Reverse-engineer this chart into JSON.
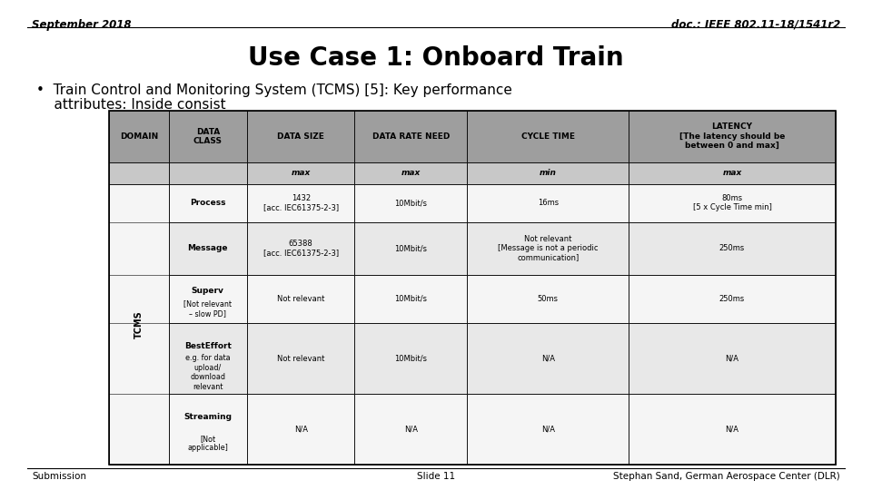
{
  "top_left": "September 2018",
  "top_right": "doc.: IEEE 802.11-18/1541r2",
  "title": "Use Case 1: Onboard Train",
  "bullet_line1": "•  Train Control and Monitoring System (TCMS) [5]: Key performance",
  "bullet_line2": "    attributes: Inside consist",
  "bottom_left": "Submission",
  "bottom_center": "Slide 11",
  "bottom_right": "Stephan Sand, German Aerospace Center (DLR)",
  "bg_color": "#ffffff",
  "header_bg": "#9e9e9e",
  "subheader_bg": "#c8c8c8",
  "row_bg_odd": "#e8e8e8",
  "row_bg_even": "#f5f5f5",
  "col_headers": [
    "DOMAIN",
    "DATA\nCLASS",
    "DATA SIZE",
    "DATA RATE NEED",
    "CYCLE TIME",
    "LATENCY\n[The latency should be\nbetween 0 and max]"
  ],
  "sub_headers": [
    "",
    "",
    "max",
    "max",
    "min",
    "max"
  ],
  "rows": [
    {
      "class_bold": "Process",
      "class_sub": "",
      "data_size": "1432\n[acc. IEC61375-2-3]",
      "data_rate": "10Mbit/s",
      "cycle_time": "16ms",
      "latency": "80ms\n[5 x Cycle Time min]"
    },
    {
      "class_bold": "Message",
      "class_sub": "",
      "data_size": "65388\n[acc. IEC61375-2-3]",
      "data_rate": "10Mbit/s",
      "cycle_time": "Not relevant\n[Message is not a periodic\ncommunication]",
      "latency": "250ms"
    },
    {
      "class_bold": "Superv",
      "class_sub": "[Not relevant\n– slow PD]",
      "data_size": "Not relevant",
      "data_rate": "10Mbit/s",
      "cycle_time": "50ms",
      "latency": "250ms"
    },
    {
      "class_bold": "BestEffort",
      "class_sub": "e.g. for data\nupload/\ndownload\nrelevant",
      "data_size": "Not relevant",
      "data_rate": "10Mbit/s",
      "cycle_time": "N/A",
      "latency": "N/A"
    },
    {
      "class_bold": "Streaming",
      "class_sub": "[Not\napplicable]",
      "data_size": "N/A",
      "data_rate": "N/A",
      "cycle_time": "N/A",
      "latency": "N/A"
    }
  ]
}
